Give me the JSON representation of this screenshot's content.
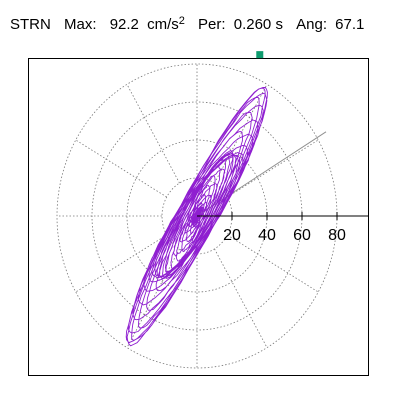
{
  "header": {
    "station": "STRN",
    "max_label": "Max:",
    "max_value": "92.2",
    "max_unit": "cm/s",
    "max_unit_exp": "2",
    "period_label": "Per:",
    "period_value": "0.260 s",
    "angle_label": "Ang:",
    "angle_value": "67.1"
  },
  "chart_data": {
    "type": "polar-hodogram",
    "quantity": "acceleration",
    "radial_ticks": [
      20,
      40,
      60,
      80
    ],
    "radial_max": 80,
    "ring_values": [
      20,
      40,
      60,
      80
    ],
    "spoke_step_deg": 30,
    "grid": true,
    "peak_value": 92.2,
    "peak_unit": "cm/s²",
    "peak_angle_deg": 67.1,
    "period_s": 0.26,
    "reference_line_deg": 31,
    "trace_major_axis_deg": 67.1,
    "trace_color": "#8f1fd0",
    "peak_marker_color": "#0e9b6e",
    "axis_color": "#000000",
    "grid_color": "#777777",
    "reference_line_color": "#909090"
  }
}
